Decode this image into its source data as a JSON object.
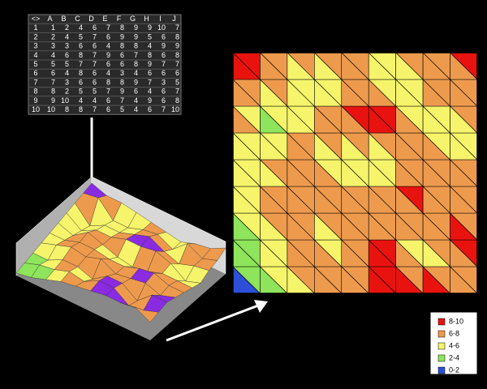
{
  "table": {
    "header": [
      "<>",
      "A",
      "B",
      "C",
      "D",
      "E",
      "F",
      "G",
      "H",
      "I",
      "J"
    ],
    "rows": [
      {
        "label": 1,
        "values": [
          1,
          2,
          4,
          6,
          7,
          8,
          9,
          9,
          10,
          7
        ]
      },
      {
        "label": 2,
        "values": [
          2,
          4,
          5,
          7,
          6,
          9,
          9,
          5,
          6,
          8
        ]
      },
      {
        "label": 3,
        "values": [
          3,
          3,
          6,
          6,
          4,
          8,
          8,
          4,
          9,
          9
        ]
      },
      {
        "label": 4,
        "values": [
          4,
          6,
          8,
          7,
          9,
          6,
          7,
          8,
          6,
          8
        ]
      },
      {
        "label": 5,
        "values": [
          5,
          5,
          7,
          7,
          6,
          6,
          8,
          9,
          7,
          7
        ]
      },
      {
        "label": 6,
        "values": [
          6,
          4,
          8,
          6,
          4,
          3,
          4,
          6,
          6,
          6
        ]
      },
      {
        "label": 7,
        "values": [
          7,
          3,
          6,
          6,
          8,
          8,
          9,
          7,
          3,
          5
        ]
      },
      {
        "label": 8,
        "values": [
          8,
          2,
          5,
          5,
          7,
          9,
          6,
          4,
          6,
          7
        ]
      },
      {
        "label": 9,
        "values": [
          9,
          10,
          4,
          4,
          6,
          7,
          4,
          9,
          6,
          8
        ]
      },
      {
        "label": 10,
        "values": [
          10,
          8,
          8,
          7,
          6,
          5,
          4,
          6,
          7,
          10
        ]
      }
    ]
  },
  "legend": {
    "items": [
      {
        "label": "8-10",
        "color": "#e8130f"
      },
      {
        "label": "6-8",
        "color": "#ee9a4d"
      },
      {
        "label": "4-6",
        "color": "#f6f46a"
      },
      {
        "label": "2-4",
        "color": "#8ee45a"
      },
      {
        "label": "0-2",
        "color": "#2d4fd8"
      }
    ]
  },
  "surface_colors": {
    "top": "#8a2be2",
    "wall": "#b0b0b0"
  }
}
